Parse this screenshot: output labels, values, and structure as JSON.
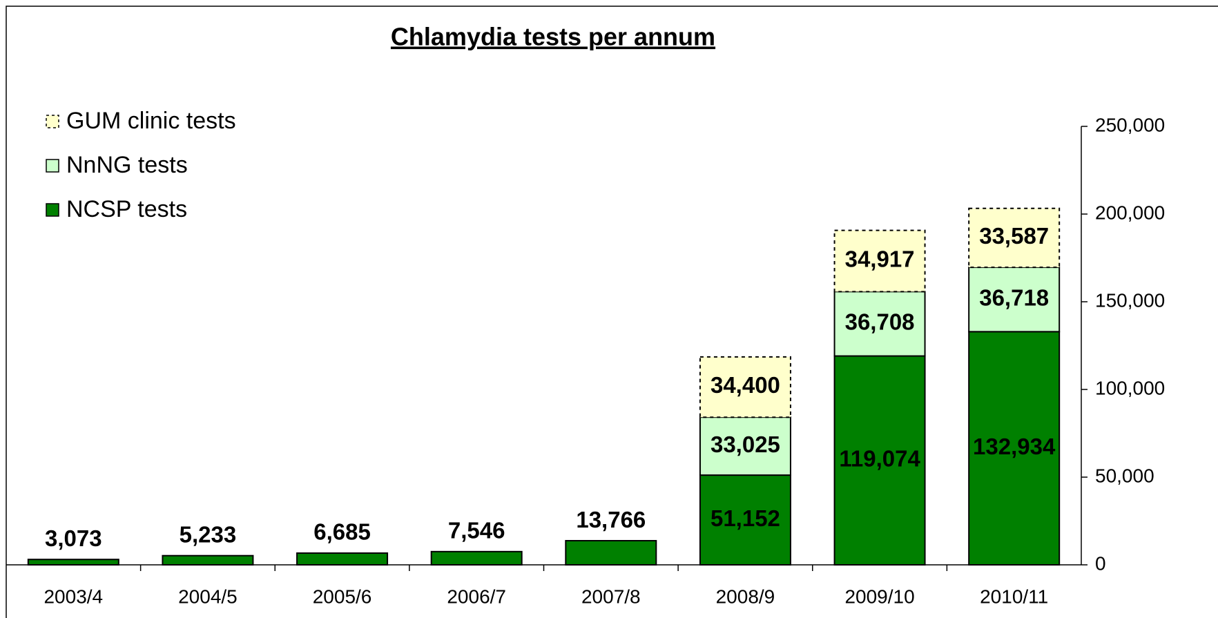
{
  "chart_data": {
    "type": "stacked_bar",
    "title": "Chlamydia tests per annum",
    "categories": [
      "2003/4",
      "2004/5",
      "2005/6",
      "2006/7",
      "2007/8",
      "2008/9",
      "2009/10",
      "2010/11"
    ],
    "series": [
      {
        "name": "NCSP tests",
        "color": "#008000",
        "values": [
          3073,
          5233,
          6685,
          7546,
          13766,
          51152,
          119074,
          132934
        ],
        "value_labels": [
          "3,073",
          "5,233",
          "6,685",
          "7,546",
          "13,766",
          "51,152",
          "119,074",
          "132,934"
        ]
      },
      {
        "name": "NnNG tests",
        "color": "#ccffcc",
        "values": [
          null,
          null,
          null,
          null,
          null,
          33025,
          36708,
          36718
        ],
        "value_labels": [
          null,
          null,
          null,
          null,
          null,
          "33,025",
          "36,708",
          "36,718"
        ]
      },
      {
        "name": "GUM clinic tests",
        "color": "#ffffcc",
        "values": [
          null,
          null,
          null,
          null,
          null,
          34400,
          34917,
          33587
        ],
        "value_labels": [
          null,
          null,
          null,
          null,
          null,
          "34,400",
          "34,917",
          "33,587"
        ]
      }
    ],
    "ylim": [
      0,
      250000
    ],
    "yticks": [
      0,
      {
        "value": 50000,
        "label": "50,000"
      },
      {
        "value": 100000,
        "label": "100,000"
      },
      {
        "value": 150000,
        "label": "150,000"
      },
      {
        "value": 200000,
        "label": "200,000"
      },
      {
        "value": 250000,
        "label": "250,000"
      }
    ],
    "y_axis_side": "right",
    "legend": "upper left",
    "grid": false
  }
}
